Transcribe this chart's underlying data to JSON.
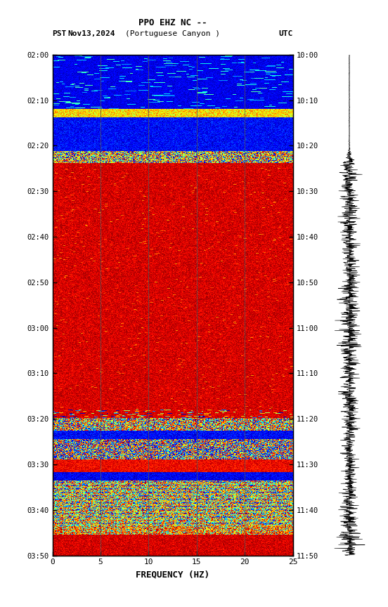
{
  "title_line1": "PPO EHZ NC --",
  "title_line2": "(Portuguese Canyon )",
  "label_left": "PST",
  "label_date": "Nov13,2024",
  "label_right": "UTC",
  "ylabel_left": [
    "02:00",
    "02:10",
    "02:20",
    "02:30",
    "02:40",
    "02:50",
    "03:00",
    "03:10",
    "03:20",
    "03:30",
    "03:40",
    "03:50"
  ],
  "ylabel_right": [
    "10:00",
    "10:10",
    "10:20",
    "10:30",
    "10:40",
    "10:50",
    "11:00",
    "11:10",
    "11:20",
    "11:30",
    "11:40",
    "11:50"
  ],
  "xlabel": "FREQUENCY (HZ)",
  "xticks": [
    0,
    5,
    10,
    15,
    20,
    25
  ],
  "freq_min": 0,
  "freq_max": 25,
  "n_freq": 300,
  "n_time": 720,
  "bg_color": "#ffffff",
  "colormap_nodes": [
    [
      0.0,
      [
        0.5,
        0.0,
        0.0
      ]
    ],
    [
      0.12,
      [
        0.8,
        0.0,
        0.0
      ]
    ],
    [
      0.25,
      [
        1.0,
        0.2,
        0.0
      ]
    ],
    [
      0.38,
      [
        1.0,
        0.6,
        0.0
      ]
    ],
    [
      0.5,
      [
        1.0,
        1.0,
        0.0
      ]
    ],
    [
      0.62,
      [
        0.0,
        1.0,
        0.5
      ]
    ],
    [
      0.75,
      [
        0.0,
        1.0,
        1.0
      ]
    ],
    [
      0.87,
      [
        0.0,
        0.5,
        1.0
      ]
    ],
    [
      1.0,
      [
        0.0,
        0.0,
        0.8
      ]
    ]
  ]
}
